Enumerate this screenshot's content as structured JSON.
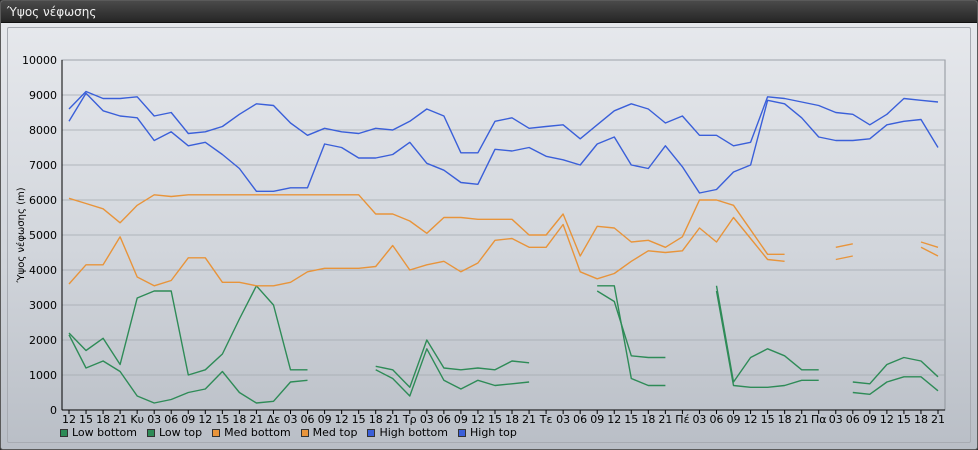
{
  "window": {
    "title": "Ύψος νέφωσης"
  },
  "chart_data": {
    "type": "line",
    "ylabel": "Ύψος νέφωσης (m)",
    "ylim": [
      0,
      10000
    ],
    "yticks": [
      0,
      1000,
      2000,
      3000,
      4000,
      5000,
      6000,
      7000,
      8000,
      9000,
      10000
    ],
    "categories": [
      "12",
      "15",
      "18",
      "21",
      "Κυ",
      "03",
      "06",
      "09",
      "12",
      "15",
      "18",
      "21",
      "Δε",
      "03",
      "06",
      "09",
      "12",
      "15",
      "18",
      "21",
      "Τρ",
      "03",
      "06",
      "09",
      "12",
      "15",
      "18",
      "21",
      "Τε",
      "03",
      "06",
      "09",
      "12",
      "15",
      "18",
      "21",
      "Πέ",
      "03",
      "06",
      "09",
      "12",
      "15",
      "18",
      "21",
      "Πα",
      "03",
      "06",
      "09",
      "12",
      "15",
      "18",
      "21"
    ],
    "series": [
      {
        "name": "Low bottom",
        "color": "#2e8b57",
        "values": [
          2150,
          1200,
          1400,
          1100,
          400,
          200,
          300,
          500,
          600,
          1100,
          500,
          200,
          250,
          800,
          850,
          null,
          null,
          null,
          1150,
          900,
          400,
          1750,
          850,
          600,
          850,
          700,
          750,
          800,
          null,
          null,
          null,
          3550,
          3550,
          900,
          700,
          700,
          null,
          null,
          3400,
          700,
          650,
          650,
          700,
          850,
          850,
          null,
          500,
          450,
          800,
          950,
          950,
          550
        ]
      },
      {
        "name": "Low top",
        "color": "#2e8b57",
        "values": [
          2200,
          1700,
          2050,
          1300,
          3200,
          3400,
          3400,
          1000,
          1150,
          1600,
          2600,
          3550,
          3000,
          1150,
          1150,
          null,
          null,
          null,
          1250,
          1150,
          650,
          2000,
          1200,
          1150,
          1200,
          1150,
          1400,
          1350,
          null,
          null,
          null,
          3400,
          3100,
          1550,
          1500,
          1500,
          null,
          null,
          3550,
          800,
          1500,
          1750,
          1550,
          1150,
          1150,
          null,
          800,
          750,
          1300,
          1500,
          1400,
          950
        ]
      },
      {
        "name": "Med bottom",
        "color": "#e8943a",
        "values": [
          3600,
          4150,
          4150,
          4950,
          3800,
          3550,
          3700,
          4350,
          4350,
          3650,
          3650,
          3550,
          3550,
          3650,
          3950,
          4050,
          4050,
          4050,
          4100,
          4700,
          4000,
          4150,
          4250,
          3950,
          4200,
          4850,
          4900,
          4650,
          4650,
          5300,
          3950,
          3750,
          3900,
          4250,
          4550,
          4500,
          4550,
          5200,
          4800,
          5500,
          4900,
          4300,
          4250,
          null,
          null,
          4300,
          4400,
          null,
          null,
          null,
          4650,
          4400
        ]
      },
      {
        "name": "Med top",
        "color": "#e8943a",
        "values": [
          6050,
          5900,
          5750,
          5350,
          5850,
          6150,
          6100,
          6150,
          6150,
          6150,
          6150,
          6150,
          6150,
          6150,
          6150,
          6150,
          6150,
          6150,
          5600,
          5600,
          5400,
          5050,
          5500,
          5500,
          5450,
          5450,
          5450,
          5000,
          5000,
          5600,
          4400,
          5250,
          5200,
          4800,
          4850,
          4650,
          4950,
          6000,
          6000,
          5850,
          5150,
          4450,
          4450,
          null,
          null,
          4650,
          4750,
          null,
          null,
          null,
          4800,
          4650
        ]
      },
      {
        "name": "High bottom",
        "color": "#3a5fd9",
        "values": [
          8250,
          9050,
          8550,
          8400,
          8350,
          7700,
          7950,
          7550,
          7650,
          7300,
          6900,
          6250,
          6250,
          6350,
          6350,
          7600,
          7500,
          7200,
          7200,
          7300,
          7650,
          7050,
          6850,
          6500,
          6450,
          7450,
          7400,
          7500,
          7250,
          7150,
          7000,
          7600,
          7800,
          7000,
          6900,
          7550,
          6950,
          6200,
          6300,
          6800,
          7000,
          8850,
          8750,
          8350,
          7800,
          7700,
          7700,
          7750,
          8150,
          8250,
          8300,
          7500
        ]
      },
      {
        "name": "High top",
        "color": "#3a5fd9",
        "values": [
          8600,
          9100,
          8900,
          8900,
          8950,
          8400,
          8500,
          7900,
          7950,
          8100,
          8450,
          8750,
          8700,
          8200,
          7850,
          8050,
          7950,
          7900,
          8050,
          8000,
          8250,
          8600,
          8400,
          7350,
          7350,
          8250,
          8350,
          8050,
          8100,
          8150,
          7750,
          8150,
          8550,
          8750,
          8600,
          8200,
          8400,
          7850,
          7850,
          7550,
          7650,
          8950,
          8900,
          8800,
          8700,
          8500,
          8450,
          8150,
          8450,
          8900,
          8850,
          8800
        ]
      }
    ]
  }
}
